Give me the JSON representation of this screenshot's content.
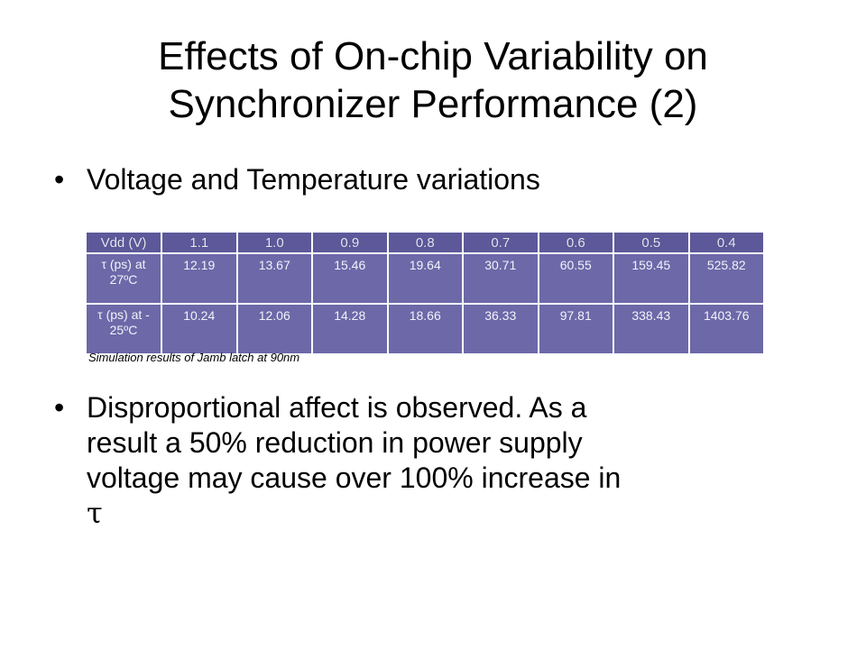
{
  "slide": {
    "title_lines": [
      "Effects of On-chip Variability on",
      "Synchronizer Performance (2)"
    ],
    "bullet_char": "•",
    "bullet1": "Voltage and Temperature variations",
    "bullet2_lines": [
      "Disproportional affect is observed. As a",
      "result a 50% reduction in power supply",
      "voltage may cause over 100% increase in"
    ],
    "bullet2_symbol": "τ"
  },
  "table": {
    "header": [
      "Vdd (V)",
      "1.1",
      "1.0",
      "0.9",
      "0.8",
      "0.7",
      "0.6",
      "0.5",
      "0.4"
    ],
    "rows": [
      {
        "label_lines": [
          "τ (ps) at",
          "27ºC"
        ],
        "values": [
          "12.19",
          "13.67",
          "15.46",
          "19.64",
          "30.71",
          "60.55",
          "159.45",
          "525.82"
        ]
      },
      {
        "label_lines": [
          "τ (ps) at -",
          "25ºC"
        ],
        "values": [
          "10.24",
          "12.06",
          "14.28",
          "18.66",
          "36.33",
          "97.81",
          "338.43",
          "1403.76"
        ]
      }
    ],
    "colors": {
      "fill": "#6d68a8",
      "header_fill": "#5d5899",
      "grid": "#ffffff",
      "text": "#f2f2fa"
    },
    "caption": "Simulation results of Jamb latch at 90nm"
  }
}
